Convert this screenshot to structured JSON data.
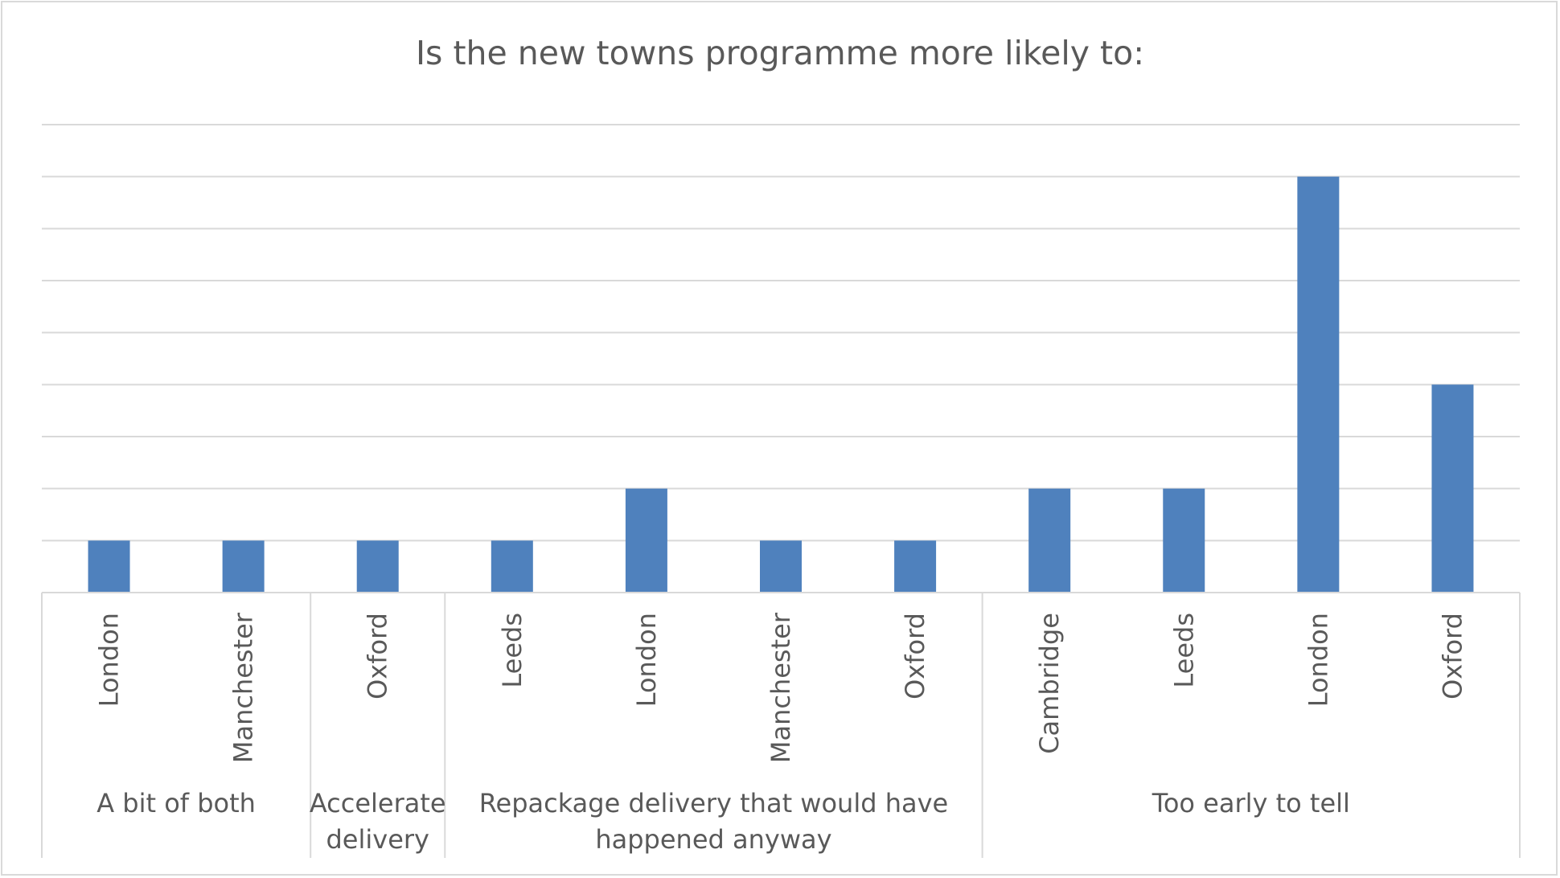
{
  "chart_data": {
    "type": "bar",
    "title": "Is the new towns programme more likely to:",
    "xlabel": "",
    "ylabel": "",
    "ylim": [
      0,
      9
    ],
    "grid": true,
    "legend": "none",
    "groups": [
      {
        "label": [
          "A bit of both"
        ],
        "categories": [
          "London",
          "Manchester"
        ]
      },
      {
        "label": [
          "Accelerate",
          "delivery"
        ],
        "categories": [
          "Oxford"
        ]
      },
      {
        "label": [
          "Repackage delivery that would have",
          "happened anyway"
        ],
        "categories": [
          "Leeds",
          "London",
          "Manchester",
          "Oxford"
        ]
      },
      {
        "label": [
          "Too early to tell"
        ],
        "categories": [
          "Cambridge",
          "Leeds",
          "London",
          "Oxford"
        ]
      }
    ],
    "categories": [
      "London",
      "Manchester",
      "Oxford",
      "Leeds",
      "London",
      "Manchester",
      "Oxford",
      "Cambridge",
      "Leeds",
      "London",
      "Oxford"
    ],
    "values": [
      1,
      1,
      1,
      1,
      2,
      1,
      1,
      2,
      2,
      8,
      4
    ],
    "bar_color": "#4f81bd",
    "grid_color": "#d9d9d9"
  }
}
